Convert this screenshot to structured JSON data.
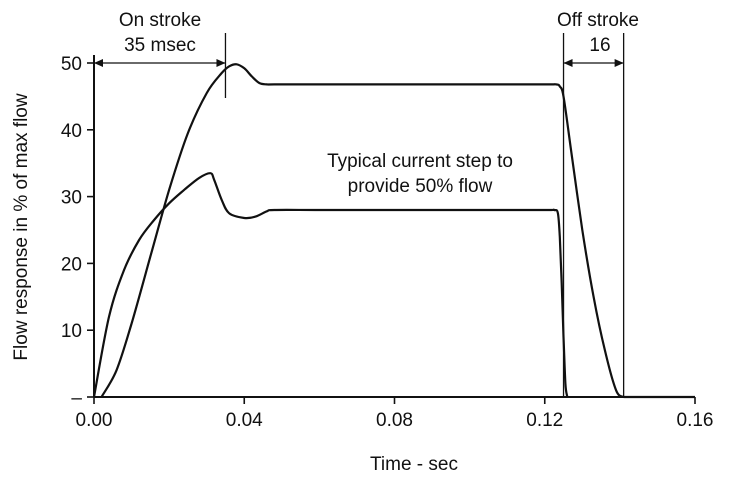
{
  "chart_data": {
    "type": "line",
    "title": "",
    "xlabel": "Time - sec",
    "ylabel": "Flow response in % of max flow",
    "xlim": [
      0,
      0.16
    ],
    "ylim": [
      0,
      50
    ],
    "x_ticks": [
      0.0,
      0.04,
      0.08,
      0.12,
      0.16
    ],
    "x_tick_labels": [
      "0.00",
      "0.04",
      "0.08",
      "0.12",
      "0.16"
    ],
    "y_ticks": [
      0,
      10,
      20,
      30,
      40,
      50
    ],
    "y_tick_labels": [
      "–",
      "10",
      "20",
      "30",
      "40",
      "50"
    ],
    "grid": false,
    "legend": "none",
    "series": [
      {
        "x": [
          0.0,
          0.004,
          0.008,
          0.012,
          0.016,
          0.02,
          0.024,
          0.028,
          0.031,
          0.032,
          0.034,
          0.036,
          0.04,
          0.043,
          0.046,
          0.048,
          0.06,
          0.08,
          0.1,
          0.12,
          0.1225,
          0.1235,
          0.124,
          0.1245,
          0.125,
          0.1255,
          0.126
        ],
        "y": [
          0,
          12,
          19,
          23.5,
          26.5,
          29,
          31,
          32.8,
          33.5,
          32.5,
          29.5,
          27.5,
          26.8,
          27,
          27.8,
          28,
          28,
          28,
          28,
          28,
          28,
          27.5,
          24,
          17,
          9,
          2,
          0
        ]
      },
      {
        "x": [
          0.002,
          0.006,
          0.01,
          0.015,
          0.02,
          0.025,
          0.03,
          0.034,
          0.036,
          0.038,
          0.04,
          0.042,
          0.044,
          0.046,
          0.048,
          0.06,
          0.08,
          0.1,
          0.12,
          0.123,
          0.124,
          0.125,
          0.127,
          0.13,
          0.133,
          0.136,
          0.139,
          0.141
        ],
        "y": [
          0,
          4,
          11,
          21,
          31,
          39.5,
          45.5,
          48.5,
          49.5,
          49.8,
          49.2,
          48,
          47,
          46.8,
          46.8,
          46.8,
          46.8,
          46.8,
          46.8,
          46.8,
          46.5,
          45,
          37,
          25,
          15,
          7,
          1,
          0
        ]
      }
    ],
    "annotations": {
      "on_stroke_line1": "On stroke",
      "on_stroke_line2": "35 msec",
      "off_stroke_line1": "Off stroke",
      "off_stroke_line2": "16",
      "current_step_line1": "Typical current step to",
      "current_step_line2": "provide 50% flow"
    },
    "on_stroke_range": [
      0.0,
      0.035
    ],
    "off_stroke_range": [
      0.125,
      0.141
    ]
  }
}
